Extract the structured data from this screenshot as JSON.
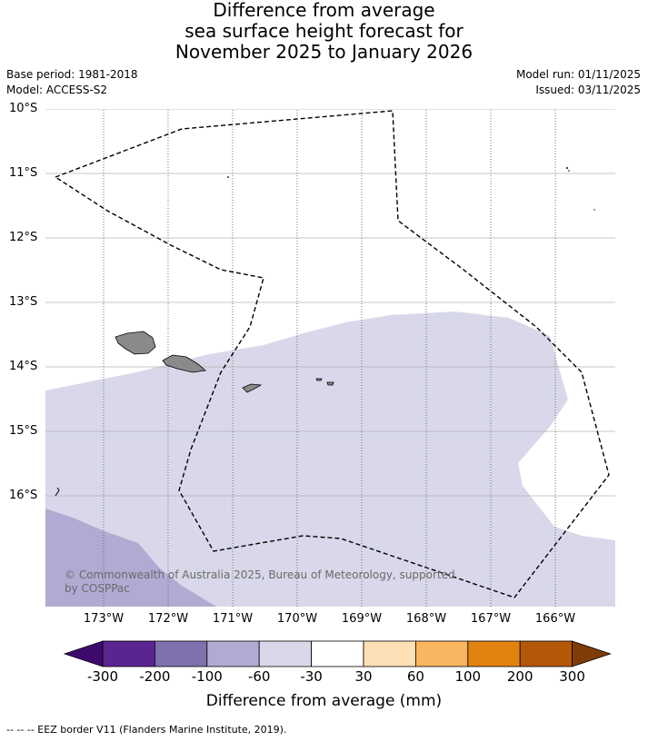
{
  "title": {
    "line1": "Difference from average",
    "line2": "sea surface height forecast for",
    "line3": "November 2025 to January 2026"
  },
  "meta": {
    "base_period": "Base period: 1981-2018",
    "model": "Model: ACCESS-S2",
    "model_run": "Model run: 01/11/2025",
    "issued": "Issued: 03/11/2025"
  },
  "map": {
    "lat_labels": [
      "10°S",
      "11°S",
      "12°S",
      "13°S",
      "14°S",
      "15°S",
      "16°S"
    ],
    "lon_labels": [
      "173°W",
      "172°W",
      "171°W",
      "170°W",
      "169°W",
      "168°W",
      "167°W",
      "166°W"
    ],
    "copyright_line1": "© Commonwealth of Australia 2025, Bureau of Meteorology, supported",
    "copyright_line2": "by COSPPac",
    "shaded_classes": [
      "-60 to -30",
      "-100 to -60",
      "-30 to 30"
    ]
  },
  "colorbar": {
    "ticks": [
      "-300",
      "-200",
      "-100",
      "-60",
      "-30",
      "30",
      "60",
      "100",
      "200",
      "300"
    ],
    "colors": [
      "#3f0a6e",
      "#5a2590",
      "#8070ae",
      "#b0abd2",
      "#d8d8ea",
      "#ffffff",
      "#fde0b6",
      "#f9b55f",
      "#e2830f",
      "#b45808",
      "#7f3c07"
    ],
    "label": "Difference from average (mm)"
  },
  "footnote": "--  --  -- EEZ border V11 (Flanders Marine Institute, 2019)."
}
